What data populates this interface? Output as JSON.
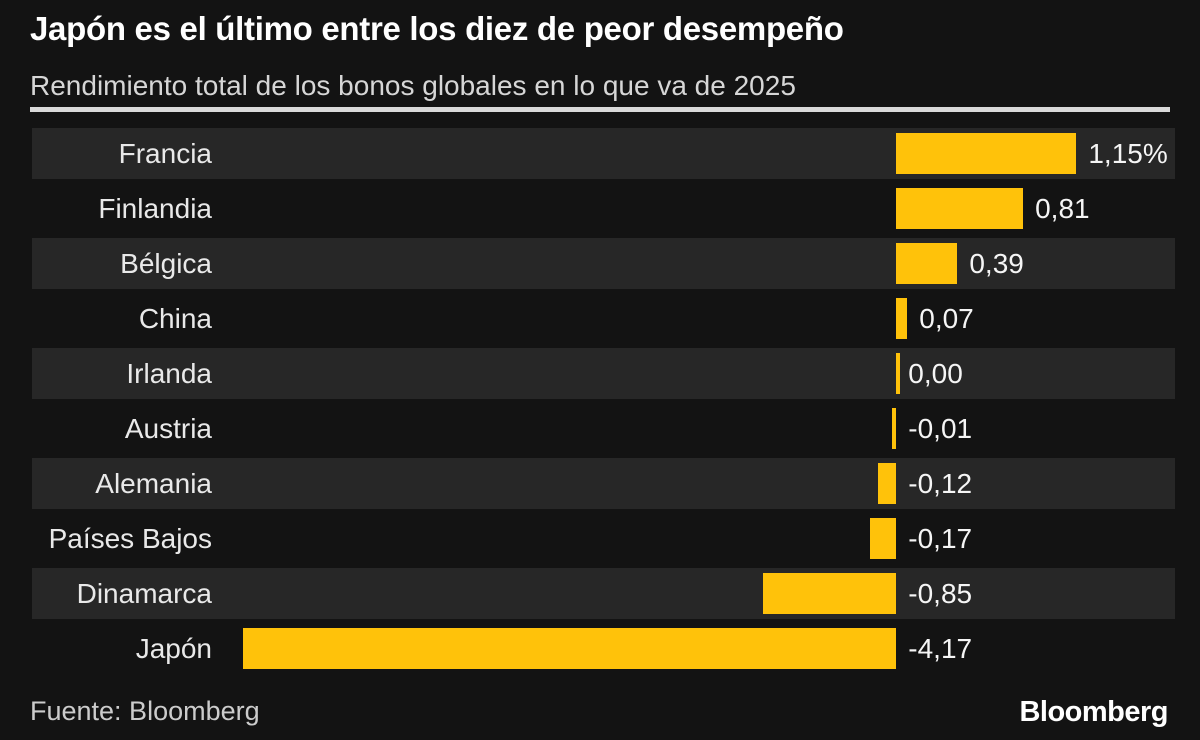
{
  "header": {
    "title": "Japón es el último entre los diez de peor desempeño",
    "subtitle": "Rendimiento total de los bonos globales en lo que va de 2025"
  },
  "footer": {
    "source": "Fuente: Bloomberg",
    "logo": "Bloomberg"
  },
  "colors": {
    "background": "#131313",
    "row_stripe": "#272727",
    "bar": "#ffc20a",
    "title_text": "#ffffff",
    "subtitle_text": "#d6d6d6",
    "label_text": "#e9e9e9",
    "value_text": "#f5f5f5",
    "rule": "#d9d9d9",
    "footer_text": "#cccccc",
    "logo_text": "#ffffff"
  },
  "chart_data": {
    "type": "bar",
    "orientation": "horizontal",
    "title": "Japón es el último entre los diez de peor desempeño",
    "subtitle": "Rendimiento total de los bonos globales en lo que va de 2025",
    "unit": "%",
    "grid": false,
    "legend": false,
    "xlim": [
      -5.52,
      1.78
    ],
    "categories": [
      "Francia",
      "Finlandia",
      "Bélgica",
      "China",
      "Irlanda",
      "Austria",
      "Alemania",
      "Países Bajos",
      "Dinamarca",
      "Japón"
    ],
    "values": [
      1.15,
      0.81,
      0.39,
      0.07,
      0.0,
      -0.01,
      -0.12,
      -0.17,
      -0.85,
      -4.17
    ],
    "rows": [
      {
        "country": "Francia",
        "value": 1.15,
        "display_value": "1,15%"
      },
      {
        "country": "Finlandia",
        "value": 0.81,
        "display_value": "0,81"
      },
      {
        "country": "Bélgica",
        "value": 0.39,
        "display_value": "0,39"
      },
      {
        "country": "China",
        "value": 0.07,
        "display_value": "0,07"
      },
      {
        "country": "Irlanda",
        "value": 0.0,
        "display_value": "0,00"
      },
      {
        "country": "Austria",
        "value": -0.01,
        "display_value": "-0,01"
      },
      {
        "country": "Alemania",
        "value": -0.12,
        "display_value": "-0,12"
      },
      {
        "country": "Países Bajos",
        "value": -0.17,
        "display_value": "-0,17"
      },
      {
        "country": "Dinamarca",
        "value": -0.85,
        "display_value": "-0,85"
      },
      {
        "country": "Japón",
        "value": -4.17,
        "display_value": "-4,17"
      }
    ]
  }
}
